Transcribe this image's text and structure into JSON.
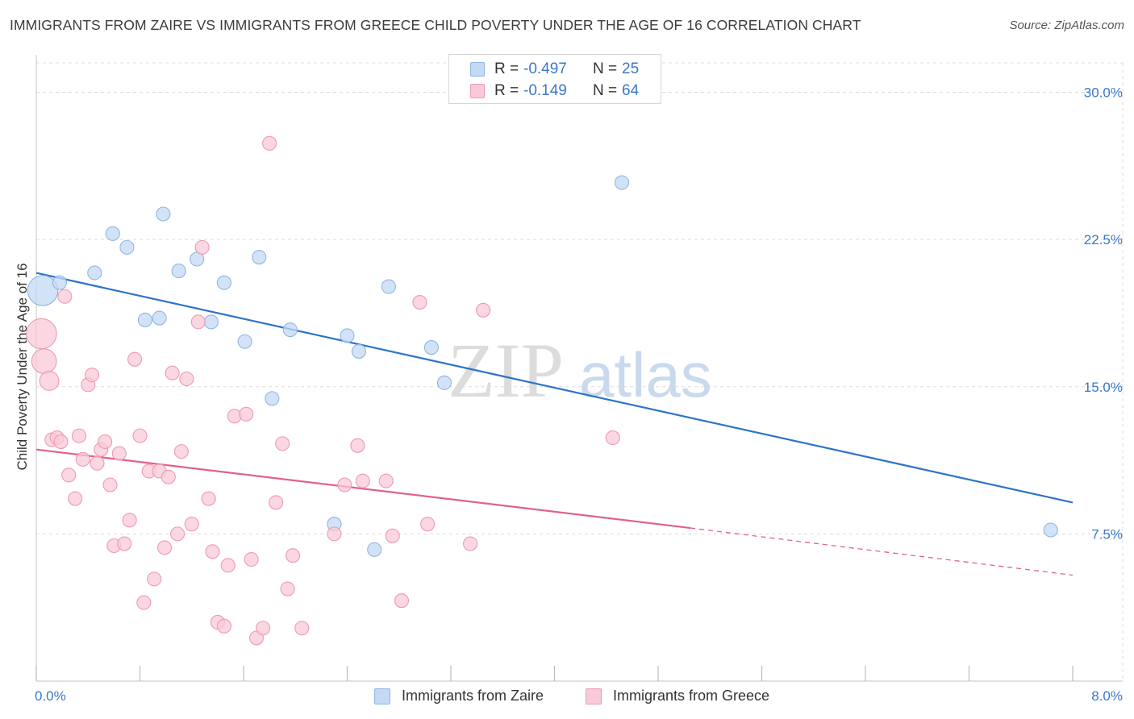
{
  "title": "IMMIGRANTS FROM ZAIRE VS IMMIGRANTS FROM GREECE CHILD POVERTY UNDER THE AGE OF 16 CORRELATION CHART",
  "source": "Source: ZipAtlas.com",
  "watermark": {
    "zip": "ZIP",
    "atlas": "atlas"
  },
  "colors": {
    "zaire_fill": "#c4d9f4",
    "zaire_stroke": "#8fb5e3",
    "zaire_line": "#2f73c9",
    "greece_fill": "#f8c9d7",
    "greece_stroke": "#ee9ab4",
    "greece_line": "#e0628c",
    "tick_label": "#3a78c9",
    "grid": "#dcdcdc"
  },
  "legend_top": [
    {
      "r_label": "R =",
      "r_value": "-0.497",
      "n_label": "N =",
      "n_value": "25"
    },
    {
      "r_label": "R =",
      "r_value": "-0.149",
      "n_label": "N =",
      "n_value": "64"
    }
  ],
  "legend_bottom": [
    {
      "label": "Immigrants from Zaire"
    },
    {
      "label": "Immigrants from Greece"
    }
  ],
  "chart_data": {
    "type": "scatter",
    "title": "IMMIGRANTS FROM ZAIRE VS IMMIGRANTS FROM GREECE CHILD POVERTY UNDER THE AGE OF 16 CORRELATION CHART",
    "xlabel": "",
    "ylabel": "Child Poverty Under the Age of 16",
    "xlim": [
      0,
      8.0
    ],
    "ylim": [
      0,
      31.5
    ],
    "x_tick_labels": [
      "0.0%",
      "8.0%"
    ],
    "y_ticks": [
      7.5,
      15.0,
      22.5,
      30.0
    ],
    "y_tick_labels": [
      "7.5%",
      "15.0%",
      "22.5%",
      "30.0%"
    ],
    "grid": true,
    "legend_position": "bottom",
    "series": [
      {
        "name": "Immigrants from Zaire",
        "points": [
          [
            0.05,
            19.9,
            2.2
          ],
          [
            0.18,
            20.3,
            1
          ],
          [
            0.45,
            20.8,
            1
          ],
          [
            0.59,
            22.8,
            1
          ],
          [
            0.7,
            22.1,
            1
          ],
          [
            0.84,
            18.4,
            1
          ],
          [
            0.98,
            23.8,
            1
          ],
          [
            1.1,
            20.9,
            1
          ],
          [
            1.24,
            21.5,
            1
          ],
          [
            1.35,
            18.3,
            1
          ],
          [
            1.45,
            20.3,
            1
          ],
          [
            1.61,
            17.3,
            1
          ],
          [
            1.72,
            21.6,
            1
          ],
          [
            1.82,
            14.4,
            1
          ],
          [
            1.96,
            17.9,
            1
          ],
          [
            2.3,
            8.0,
            1
          ],
          [
            2.4,
            17.6,
            1
          ],
          [
            2.49,
            16.8,
            1
          ],
          [
            2.61,
            6.7,
            1
          ],
          [
            2.72,
            20.1,
            1
          ],
          [
            3.05,
            17.0,
            1
          ],
          [
            3.15,
            15.2,
            1
          ],
          [
            4.52,
            25.4,
            1
          ],
          [
            7.83,
            7.7,
            1
          ],
          [
            0.95,
            18.5,
            1
          ]
        ],
        "trend": {
          "x": [
            0.0,
            8.0
          ],
          "y": [
            20.8,
            9.1
          ]
        }
      },
      {
        "name": "Immigrants from Greece",
        "points": [
          [
            0.04,
            17.7,
            2.2
          ],
          [
            0.06,
            16.3,
            1.8
          ],
          [
            0.1,
            15.3,
            1.4
          ],
          [
            0.12,
            12.3,
            1
          ],
          [
            0.16,
            12.4,
            1
          ],
          [
            0.19,
            12.2,
            1
          ],
          [
            0.22,
            19.6,
            1
          ],
          [
            0.25,
            10.5,
            1
          ],
          [
            0.3,
            9.3,
            1
          ],
          [
            0.33,
            12.5,
            1
          ],
          [
            0.36,
            11.3,
            1
          ],
          [
            0.4,
            15.1,
            1
          ],
          [
            0.43,
            15.6,
            1
          ],
          [
            0.47,
            11.1,
            1
          ],
          [
            0.5,
            11.8,
            1
          ],
          [
            0.53,
            12.2,
            1
          ],
          [
            0.57,
            10.0,
            1
          ],
          [
            0.6,
            6.9,
            1
          ],
          [
            0.64,
            11.6,
            1
          ],
          [
            0.68,
            7.0,
            1
          ],
          [
            0.72,
            8.2,
            1
          ],
          [
            0.76,
            16.4,
            1
          ],
          [
            0.8,
            12.5,
            1
          ],
          [
            0.83,
            4.0,
            1
          ],
          [
            0.87,
            10.7,
            1
          ],
          [
            0.91,
            5.2,
            1
          ],
          [
            0.95,
            10.7,
            1
          ],
          [
            0.99,
            6.8,
            1
          ],
          [
            1.02,
            10.4,
            1
          ],
          [
            1.05,
            15.7,
            1
          ],
          [
            1.09,
            7.5,
            1
          ],
          [
            1.12,
            11.7,
            1
          ],
          [
            1.16,
            15.4,
            1
          ],
          [
            1.2,
            8.0,
            1
          ],
          [
            1.25,
            18.3,
            1
          ],
          [
            1.28,
            22.1,
            1
          ],
          [
            1.33,
            9.3,
            1
          ],
          [
            1.36,
            6.6,
            1
          ],
          [
            1.4,
            3.0,
            1
          ],
          [
            1.45,
            2.8,
            1
          ],
          [
            1.48,
            5.9,
            1
          ],
          [
            1.53,
            13.5,
            1
          ],
          [
            1.62,
            13.6,
            1
          ],
          [
            1.66,
            6.2,
            1
          ],
          [
            1.7,
            2.2,
            1
          ],
          [
            1.75,
            2.7,
            1
          ],
          [
            1.8,
            27.4,
            1
          ],
          [
            1.85,
            9.1,
            1
          ],
          [
            1.9,
            12.1,
            1
          ],
          [
            1.94,
            4.7,
            1
          ],
          [
            1.98,
            6.4,
            1
          ],
          [
            2.05,
            2.7,
            1
          ],
          [
            2.3,
            7.5,
            1
          ],
          [
            2.38,
            10.0,
            1
          ],
          [
            2.48,
            12.0,
            1
          ],
          [
            2.52,
            10.2,
            1
          ],
          [
            2.7,
            10.2,
            1
          ],
          [
            2.75,
            7.4,
            1
          ],
          [
            2.82,
            4.1,
            1
          ],
          [
            2.96,
            19.3,
            1
          ],
          [
            3.02,
            8.0,
            1
          ],
          [
            3.35,
            7.0,
            1
          ],
          [
            3.45,
            18.9,
            1
          ],
          [
            4.45,
            12.4,
            1
          ]
        ],
        "trend": {
          "x": [
            0.0,
            5.05
          ],
          "y": [
            11.8,
            7.8
          ]
        },
        "trend_extension": {
          "x": [
            5.05,
            8.0
          ],
          "y": [
            7.8,
            5.4
          ]
        }
      }
    ]
  }
}
